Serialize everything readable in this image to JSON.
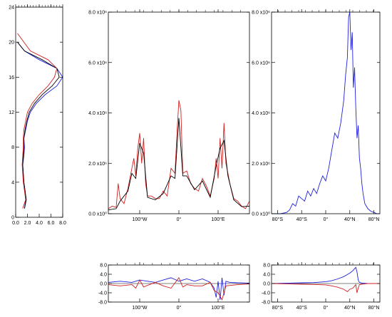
{
  "chart_data": [
    {
      "id": "vertical-profile",
      "type": "line",
      "xlim": [
        0,
        8
      ],
      "ylim": [
        0,
        24
      ],
      "x_ticks": [
        "0.0",
        "2.0",
        "4.0",
        "6.0",
        "8.0"
      ],
      "y_ticks": [
        "0",
        "4",
        "8",
        "12",
        "16",
        "20",
        "24"
      ],
      "series": [
        {
          "color": "#2020e0",
          "x": [
            1.5,
            1.7,
            1.6,
            1.4,
            1.3,
            1.2,
            1.4,
            1.5,
            1.4,
            1.7,
            2.0,
            2.5,
            3.5,
            5.0,
            7.0,
            8.0,
            7.0,
            4.0,
            1.5,
            0.3
          ],
          "y": [
            1,
            2,
            3,
            4,
            5,
            6,
            7,
            8,
            9,
            10,
            11,
            12,
            13,
            14,
            15,
            16,
            17,
            18,
            19,
            20
          ]
        },
        {
          "color": "#000000",
          "x": [
            1.5,
            1.8,
            1.6,
            1.4,
            1.3,
            1.2,
            1.3,
            1.4,
            1.4,
            1.6,
            1.9,
            2.3,
            3.2,
            4.5,
            6.2,
            7.4,
            7.0,
            4.5,
            1.5,
            0.3
          ],
          "y": [
            1,
            2,
            3,
            4,
            5,
            6,
            7,
            8,
            9,
            10,
            11,
            12,
            13,
            14,
            15,
            16,
            17,
            18,
            19,
            20
          ]
        },
        {
          "color": "#d02020",
          "x": [
            1.2,
            1.7,
            1.5,
            1.3,
            1.2,
            1.1,
            1.2,
            1.3,
            1.3,
            1.4,
            1.7,
            2.0,
            2.8,
            4.0,
            5.5,
            6.6,
            7.0,
            5.5,
            2.5,
            0.3
          ],
          "y": [
            1,
            2,
            3,
            4,
            5,
            6,
            7,
            8,
            9,
            10,
            11,
            12,
            13,
            14,
            15,
            16,
            17,
            18,
            19,
            21
          ]
        }
      ]
    },
    {
      "id": "longitude-main",
      "type": "line",
      "xlim": [
        -180,
        180
      ],
      "ylim": [
        0,
        8000000
      ],
      "x_ticks": [
        "100°W",
        "0°",
        "100°E"
      ],
      "y_ticks": [
        "0.0 x10⁰",
        "2.0 x10⁶",
        "4.0 x10⁶",
        "6.0 x10⁶",
        "8.0 x10⁶"
      ],
      "series": [
        {
          "color": "#d02020",
          "x": [
            -180,
            -170,
            -160,
            -155,
            -150,
            -140,
            -130,
            -120,
            -115,
            -110,
            -105,
            -100,
            -95,
            -90,
            -85,
            -80,
            -70,
            -60,
            -50,
            -40,
            -30,
            -20,
            -10,
            -5,
            0,
            5,
            10,
            20,
            30,
            40,
            50,
            60,
            70,
            80,
            90,
            95,
            100,
            105,
            110,
            115,
            120,
            125,
            130,
            140,
            150,
            160,
            170,
            180
          ],
          "y": [
            200000,
            300000,
            250000,
            1200000,
            600000,
            400000,
            1000000,
            1800000,
            2200000,
            1500000,
            2600000,
            3200000,
            2000000,
            3000000,
            1200000,
            700000,
            700000,
            600000,
            600000,
            900000,
            700000,
            1800000,
            1600000,
            3200000,
            4500000,
            4100000,
            1600000,
            1700000,
            1200000,
            1000000,
            900000,
            1400000,
            1100000,
            700000,
            1400000,
            2200000,
            1400000,
            3000000,
            1800000,
            3600000,
            2000000,
            1600000,
            1200000,
            600000,
            500000,
            300000,
            200000,
            500000
          ]
        },
        {
          "color": "#000000",
          "x": [
            -180,
            -160,
            -150,
            -130,
            -120,
            -110,
            -100,
            -90,
            -80,
            -60,
            -40,
            -20,
            -10,
            0,
            10,
            20,
            40,
            60,
            80,
            95,
            105,
            115,
            125,
            140,
            160,
            180
          ],
          "y": [
            150000,
            200000,
            500000,
            900000,
            1600000,
            1400000,
            2800000,
            2400000,
            650000,
            550000,
            800000,
            1500000,
            1400000,
            3800000,
            1500000,
            1500000,
            950000,
            1300000,
            650000,
            1900000,
            2600000,
            2900000,
            1500000,
            550000,
            280000,
            300000
          ]
        }
      ]
    },
    {
      "id": "latitude-main",
      "type": "line",
      "xlim": [
        -90,
        90
      ],
      "ylim": [
        0,
        8000000
      ],
      "x_ticks": [
        "80°S",
        "40°S",
        "0°",
        "40°N",
        "80°N"
      ],
      "y_ticks": [
        "0.0 x10⁰",
        "2.0 x10⁶",
        "4.0 x10⁶",
        "6.0 x10⁶",
        "8.0 x10⁶"
      ],
      "series": [
        {
          "color": "#2020e0",
          "x": [
            -90,
            -75,
            -65,
            -60,
            -55,
            -50,
            -45,
            -40,
            -35,
            -30,
            -25,
            -20,
            -15,
            -10,
            -5,
            0,
            5,
            10,
            15,
            20,
            25,
            30,
            33,
            36,
            38,
            40,
            42,
            44,
            46,
            48,
            50,
            52,
            54,
            56,
            58,
            60,
            62,
            65,
            70,
            75,
            80,
            85,
            90
          ],
          "y": [
            0,
            0,
            50000,
            150000,
            400000,
            300000,
            700000,
            600000,
            500000,
            900000,
            700000,
            1000000,
            800000,
            1200000,
            1500000,
            1300000,
            1800000,
            2500000,
            3200000,
            3000000,
            3600000,
            4500000,
            5500000,
            6200000,
            7800000,
            8000000,
            6500000,
            7200000,
            5000000,
            5800000,
            4200000,
            3000000,
            3500000,
            2200000,
            1800000,
            1200000,
            800000,
            400000,
            200000,
            100000,
            50000,
            0,
            0
          ]
        }
      ]
    },
    {
      "id": "longitude-diff",
      "type": "line",
      "xlim": [
        -180,
        180
      ],
      "ylim": [
        -8,
        8
      ],
      "x_ticks": [
        "100°W",
        "0°",
        "100°E"
      ],
      "y_ticks": [
        "-8.0",
        "-4.0",
        "0.0",
        "4.0",
        "8.0"
      ],
      "series": [
        {
          "color": "#2020e0",
          "x": [
            -180,
            -150,
            -120,
            -100,
            -80,
            -60,
            -40,
            -20,
            0,
            20,
            40,
            60,
            80,
            90,
            95,
            100,
            105,
            110,
            115,
            120,
            130,
            150,
            180
          ],
          "y": [
            0.5,
            1.0,
            0.5,
            1.5,
            1.0,
            0.5,
            1.5,
            2.5,
            1.0,
            2.0,
            1.0,
            2.0,
            0.5,
            -2.0,
            -6.0,
            1.0,
            -7.0,
            2.5,
            -5.0,
            1.0,
            0.5,
            0.3,
            0.2
          ]
        },
        {
          "color": "#d02020",
          "x": [
            -180,
            -150,
            -120,
            -110,
            -100,
            -90,
            -80,
            -60,
            -40,
            -20,
            0,
            10,
            20,
            40,
            60,
            80,
            90,
            100,
            110,
            120,
            150,
            180
          ],
          "y": [
            -0.5,
            -1.0,
            -0.5,
            -2.0,
            1.5,
            -1.5,
            -0.8,
            0.5,
            -1.0,
            -2.0,
            2.5,
            -1.5,
            -0.5,
            -1.0,
            -1.0,
            0.5,
            -3.0,
            -4.0,
            -7.0,
            -1.0,
            -0.5,
            -0.2
          ]
        }
      ]
    },
    {
      "id": "latitude-diff",
      "type": "line",
      "xlim": [
        -90,
        90
      ],
      "ylim": [
        -8,
        8
      ],
      "x_ticks": [
        "80°S",
        "40°S",
        "0°",
        "40°N",
        "80°N"
      ],
      "y_ticks": [
        "-8.0",
        "-4.0",
        "0.0",
        "4.0",
        "8.0"
      ],
      "series": [
        {
          "color": "#2020e0",
          "x": [
            -90,
            -60,
            -40,
            -20,
            0,
            10,
            20,
            30,
            40,
            45,
            50,
            52,
            54,
            56,
            60,
            70,
            90
          ],
          "y": [
            0,
            0.2,
            0.3,
            0.4,
            0.8,
            1.2,
            2.0,
            3.0,
            4.5,
            5.5,
            7.0,
            5.0,
            1.5,
            0.5,
            0.2,
            0,
            0
          ]
        },
        {
          "color": "#d02020",
          "x": [
            -90,
            -60,
            -40,
            -20,
            0,
            10,
            20,
            30,
            36,
            40,
            45,
            50,
            52,
            54,
            56,
            60,
            70,
            90
          ],
          "y": [
            0,
            -0.2,
            -0.3,
            -0.4,
            -0.6,
            -1.0,
            -1.6,
            -2.5,
            -3.5,
            -2.5,
            -2.0,
            -0.5,
            -4.0,
            -2.0,
            -0.5,
            -0.3,
            0,
            0
          ]
        }
      ]
    }
  ]
}
